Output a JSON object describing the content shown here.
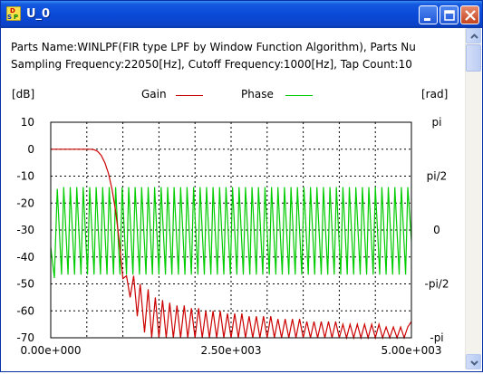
{
  "window": {
    "title": "U_0",
    "app_icon": "dsp-icon",
    "buttons": [
      "minimize-icon",
      "maximize-icon",
      "close-icon"
    ]
  },
  "info": {
    "line1": "Parts Name:WINLPF(FIR type LPF by Window Function Algorithm), Parts Nu",
    "line2": "Sampling Frequency:22050[Hz], Cutoff Frequency:1000[Hz], Tap Count:10"
  },
  "colors": {
    "gain": "#cc0000",
    "phase": "#00cc00",
    "titlebar": "#0a4ad8",
    "grid": "#000000"
  },
  "chart_data": {
    "type": "line",
    "xlabel": "",
    "left_unit": "[dB]",
    "right_unit": "[rad]",
    "xlim": [
      0,
      5000
    ],
    "ylim_left": [
      -70,
      10
    ],
    "ylim_right_labels": [
      "pi",
      "pi/2",
      "0",
      "-pi/2",
      "-pi"
    ],
    "x_tick_labels": [
      "0.00e+000",
      "2.50e+003",
      "5.00e+003"
    ],
    "y_tick_labels": [
      "10",
      "0",
      "-10",
      "-20",
      "-30",
      "-40",
      "-50",
      "-60",
      "-70"
    ],
    "grid": true,
    "grid_style": "dotted",
    "legend_position": "top-center",
    "series": [
      {
        "name": "Gain",
        "axis": "left",
        "x": [
          0,
          150,
          300,
          450,
          550,
          600,
          650,
          700,
          750,
          800,
          850,
          900,
          950,
          1000,
          1050,
          1100,
          1150,
          1200,
          1240,
          1300,
          1350,
          1400,
          1450,
          1500,
          1550,
          1600,
          1650,
          1700,
          1750,
          1800,
          1850,
          1900,
          1950,
          2000,
          2050,
          2100,
          2150,
          2200,
          2250,
          2300,
          2350,
          2400,
          2450,
          2500,
          2550,
          2600,
          2650,
          2700,
          2750,
          2800,
          2850,
          2900,
          2950,
          3000,
          3050,
          3100,
          3150,
          3200,
          3250,
          3300,
          3350,
          3400,
          3450,
          3500,
          3550,
          3600,
          3650,
          3700,
          3750,
          3800,
          3850,
          3900,
          3950,
          4000,
          4050,
          4100,
          4150,
          4200,
          4250,
          4300,
          4350,
          4400,
          4450,
          4500,
          4550,
          4600,
          4650,
          4700,
          4750,
          4800,
          4850,
          4900,
          4950,
          5000
        ],
        "values": [
          0,
          0,
          0,
          0,
          0,
          -0.2,
          -0.8,
          -2.3,
          -5,
          -9,
          -15,
          -23,
          -34,
          -48,
          -47,
          -55,
          -47,
          -62,
          -50,
          -68,
          -52,
          -70,
          -55,
          -70,
          -56,
          -70,
          -57,
          -70,
          -58,
          -70,
          -58,
          -70,
          -59,
          -70,
          -59,
          -70,
          -60,
          -70,
          -60,
          -70,
          -60,
          -70,
          -61,
          -70,
          -61,
          -70,
          -61,
          -70,
          -62,
          -70,
          -62,
          -70,
          -62,
          -70,
          -62,
          -70,
          -63,
          -70,
          -63,
          -70,
          -63,
          -70,
          -63,
          -70,
          -64,
          -70,
          -64,
          -70,
          -64,
          -70,
          -64,
          -70,
          -64,
          -70,
          -65,
          -70,
          -65,
          -70,
          -65,
          -70,
          -65,
          -70,
          -65,
          -70,
          -65,
          -70,
          -66,
          -70,
          -66,
          -70,
          -66,
          -70,
          -66,
          -64
        ]
      },
      {
        "name": "Phase",
        "axis": "right",
        "x": [
          0,
          50,
          90,
          150,
          180,
          240,
          270,
          330,
          360,
          420,
          450,
          510,
          540,
          600,
          630,
          690,
          720,
          780,
          810,
          870,
          900,
          960,
          990,
          1050,
          1080,
          1140,
          1170,
          1230,
          1260,
          1320,
          1350,
          1410,
          1440,
          1500,
          1530,
          1590,
          1620,
          1680,
          1710,
          1770,
          1800,
          1860,
          1890,
          1950,
          1980,
          2040,
          2070,
          2130,
          2160,
          2220,
          2250,
          2310,
          2340,
          2400,
          2430,
          2490,
          2520,
          2580,
          2610,
          2670,
          2700,
          2760,
          2790,
          2850,
          2880,
          2940,
          2970,
          3030,
          3060,
          3120,
          3150,
          3210,
          3240,
          3300,
          3330,
          3390,
          3420,
          3480,
          3510,
          3570,
          3600,
          3660,
          3690,
          3750,
          3780,
          3840,
          3870,
          3930,
          3960,
          4020,
          4050,
          4110,
          4140,
          4200,
          4230,
          4290,
          4320,
          4380,
          4410,
          4470,
          4500,
          4560,
          4590,
          4650,
          4680,
          4740,
          4770,
          4830,
          4860,
          4920,
          4950,
          5000
        ],
        "values": [
          -0.5,
          -1.4,
          1.2,
          -1.3,
          1.25,
          -1.3,
          1.25,
          -1.3,
          1.25,
          -1.3,
          1.25,
          -1.3,
          1.25,
          -1.3,
          1.25,
          -1.3,
          1.25,
          -1.3,
          1.25,
          -1.3,
          1.25,
          -1.3,
          1.25,
          -1.3,
          1.25,
          -1.3,
          1.25,
          -1.3,
          1.25,
          -1.3,
          1.25,
          -1.3,
          1.25,
          -1.3,
          1.25,
          -1.3,
          1.25,
          -1.3,
          1.25,
          -1.3,
          1.25,
          -1.3,
          1.25,
          -1.3,
          1.25,
          -1.3,
          1.25,
          -1.3,
          1.25,
          -1.3,
          1.25,
          -1.3,
          1.25,
          -1.3,
          1.25,
          -1.3,
          1.25,
          -1.3,
          1.25,
          -1.3,
          1.25,
          -1.3,
          1.25,
          -1.3,
          1.25,
          -1.3,
          1.25,
          -1.3,
          1.25,
          -1.3,
          1.25,
          -1.3,
          1.25,
          -1.3,
          1.25,
          -1.3,
          1.25,
          -1.3,
          1.25,
          -1.3,
          1.25,
          -1.3,
          1.25,
          -1.3,
          1.25,
          -1.3,
          1.25,
          -1.3,
          1.25,
          -1.3,
          1.25,
          -1.3,
          1.25,
          -1.3,
          1.25,
          -1.3,
          1.25,
          -1.3,
          1.25,
          -1.3,
          1.25,
          -1.3,
          1.25,
          -1.3,
          1.25,
          -1.3,
          1.25,
          -1.3,
          1.25,
          -1.3,
          1.25,
          -0.3
        ]
      }
    ]
  }
}
